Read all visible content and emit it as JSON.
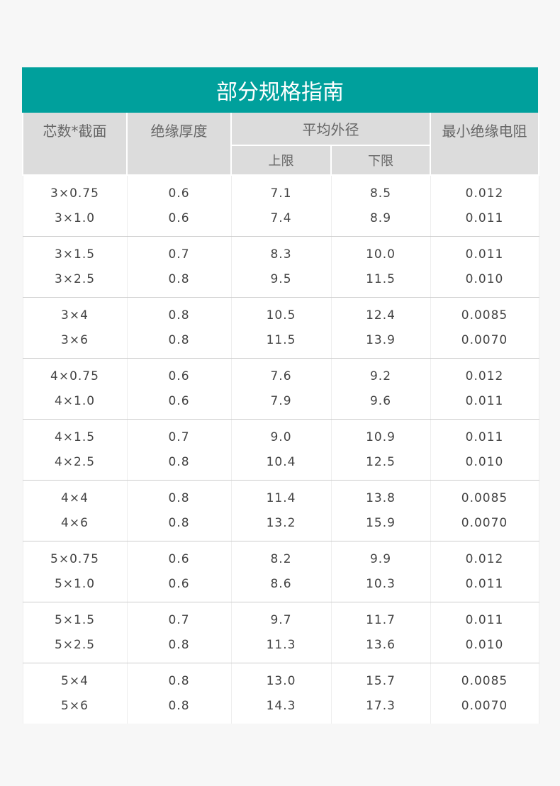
{
  "title": "部分规格指南",
  "headers": {
    "core": "芯数*截面",
    "insulation": "绝缘厚度",
    "avg_diameter": "平均外径",
    "upper": "上限",
    "lower": "下限",
    "resistance": "最小绝缘电阻"
  },
  "groups": [
    [
      [
        "3×0.75",
        "0.6",
        "7.1",
        "8.5",
        "0.012"
      ],
      [
        "3×1.0",
        "0.6",
        "7.4",
        "8.9",
        "0.011"
      ]
    ],
    [
      [
        "3×1.5",
        "0.7",
        "8.3",
        "10.0",
        "0.011"
      ],
      [
        "3×2.5",
        "0.8",
        "9.5",
        "11.5",
        "0.010"
      ]
    ],
    [
      [
        "3×4",
        "0.8",
        "10.5",
        "12.4",
        "0.0085"
      ],
      [
        "3×6",
        "0.8",
        "11.5",
        "13.9",
        "0.0070"
      ]
    ],
    [
      [
        "4×0.75",
        "0.6",
        "7.6",
        "9.2",
        "0.012"
      ],
      [
        "4×1.0",
        "0.6",
        "7.9",
        "9.6",
        "0.011"
      ]
    ],
    [
      [
        "4×1.5",
        "0.7",
        "9.0",
        "10.9",
        "0.011"
      ],
      [
        "4×2.5",
        "0.8",
        "10.4",
        "12.5",
        "0.010"
      ]
    ],
    [
      [
        "4×4",
        "0.8",
        "11.4",
        "13.8",
        "0.0085"
      ],
      [
        "4×6",
        "0.8",
        "13.2",
        "15.9",
        "0.0070"
      ]
    ],
    [
      [
        "5×0.75",
        "0.6",
        "8.2",
        "9.9",
        "0.012"
      ],
      [
        "5×1.0",
        "0.6",
        "8.6",
        "10.3",
        "0.011"
      ]
    ],
    [
      [
        "5×1.5",
        "0.7",
        "9.7",
        "11.7",
        "0.011"
      ],
      [
        "5×2.5",
        "0.8",
        "11.3",
        "13.6",
        "0.010"
      ]
    ],
    [
      [
        "5×4",
        "0.8",
        "13.0",
        "15.7",
        "0.0085"
      ],
      [
        "5×6",
        "0.8",
        "14.3",
        "17.3",
        "0.0070"
      ]
    ]
  ],
  "colors": {
    "title_bg": "#00a09c",
    "header_bg": "#dcdcdc"
  }
}
